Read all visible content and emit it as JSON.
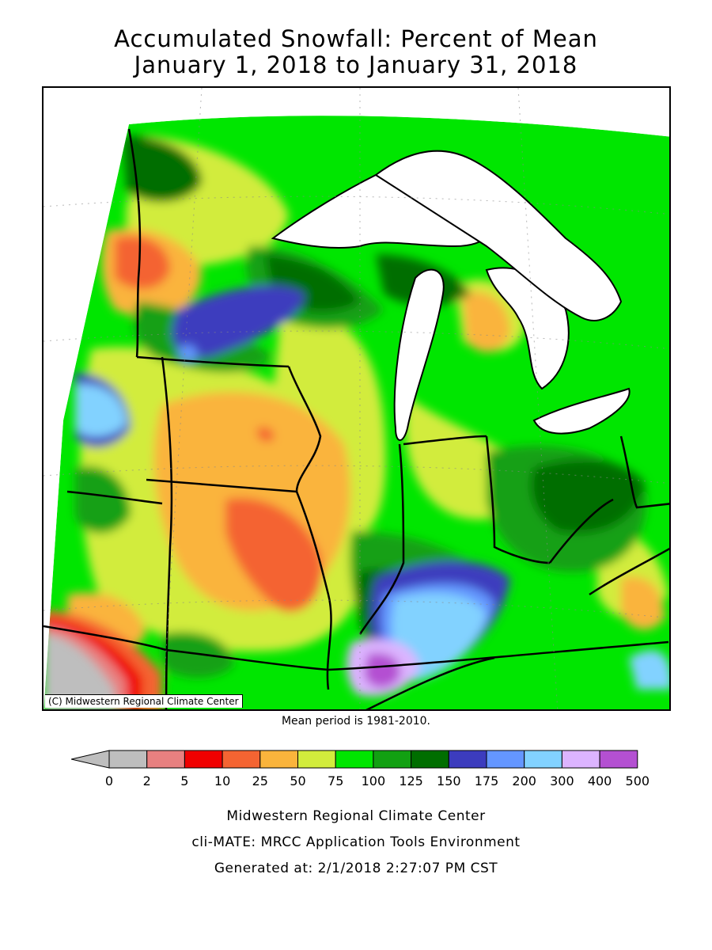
{
  "title": {
    "line1": "Accumulated Snowfall: Percent of Mean",
    "line2": "January 1, 2018 to January 31, 2018"
  },
  "map": {
    "copyright": "(C) Midwestern Regional Climate Center",
    "mean_period": "Mean period is 1981-2010."
  },
  "legend": {
    "ticks": [
      "0",
      "2",
      "5",
      "10",
      "25",
      "50",
      "75",
      "100",
      "125",
      "150",
      "175",
      "200",
      "300",
      "400",
      "500"
    ],
    "below_color": "#bebebe",
    "colors": [
      "#bebebe",
      "#e88080",
      "#f00000",
      "#f46432",
      "#fab43c",
      "#d2ec3c",
      "#00e600",
      "#12a012",
      "#006e00",
      "#3c3cbe",
      "#6496ff",
      "#82d2ff",
      "#dcb4ff",
      "#b450d2"
    ]
  },
  "footer": {
    "line1": "Midwestern Regional Climate Center",
    "line2": "cli-MATE: MRCC Application Tools Environment",
    "line3": "Generated at: 2/1/2018 2:27:07 PM CST"
  }
}
